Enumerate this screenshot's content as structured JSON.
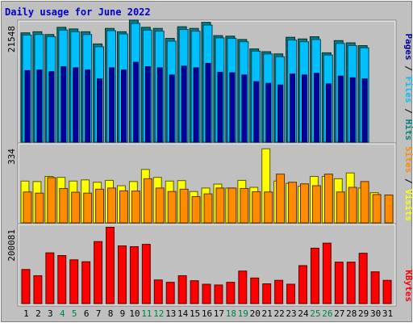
{
  "colors": {
    "background": "#C0C0C0",
    "panel": "#C0C0C0",
    "border_dark": "#808080",
    "border_light": "#FFFFFF",
    "title": "#0000CC",
    "hits": "#008080",
    "files": "#00BFFF",
    "pages": "#0000A0",
    "visits": "#FFFF00",
    "sites": "#FF8C00",
    "kbytes": "#FF0000",
    "weekend_day": "#008040",
    "weekday": "#000000"
  },
  "chart_data": {
    "type": "bar",
    "title": "Daily usage for June 2022",
    "categories": [
      "1",
      "2",
      "3",
      "4",
      "5",
      "6",
      "7",
      "8",
      "9",
      "10",
      "11",
      "12",
      "13",
      "14",
      "15",
      "16",
      "17",
      "18",
      "19",
      "20",
      "21",
      "22",
      "23",
      "24",
      "25",
      "26",
      "27",
      "28",
      "29",
      "30",
      "31"
    ],
    "weekend_days": [
      "4",
      "5",
      "11",
      "12",
      "18",
      "19",
      "25",
      "26"
    ],
    "panels": [
      {
        "id": "hits-files-pages",
        "scale_label": "21548",
        "ymax": 21548,
        "legend": [
          {
            "label": "Hits",
            "color": "#008080"
          },
          {
            "label": "Files",
            "color": "#00BFFF"
          },
          {
            "label": "Pages",
            "color": "#0000A0"
          }
        ],
        "series": [
          {
            "name": "Hits",
            "values": [
              19700,
              19900,
              19400,
              20700,
              20400,
              19900,
              17700,
              20500,
              19900,
              22000,
              20700,
              20500,
              18700,
              20800,
              20500,
              21600,
              19200,
              19100,
              18500,
              16800,
              16300,
              15900,
              18900,
              18600,
              19000,
              16100,
              18300,
              17900,
              17400,
              0,
              0
            ]
          },
          {
            "name": "Files",
            "values": [
              19300,
              19400,
              19000,
              20200,
              19900,
              19400,
              17200,
              20100,
              19500,
              21400,
              20200,
              20000,
              18200,
              20300,
              20000,
              21100,
              18800,
              18700,
              18100,
              16400,
              15900,
              15400,
              18400,
              18100,
              18500,
              15700,
              17800,
              17400,
              17000,
              0,
              0
            ]
          },
          {
            "name": "Pages",
            "values": [
              12900,
              13000,
              12700,
              13600,
              13400,
              13000,
              11400,
              13400,
              13000,
              14400,
              13600,
              13400,
              12100,
              13700,
              13400,
              14200,
              12600,
              12500,
              12100,
              10900,
              10600,
              10300,
              12300,
              12100,
              12400,
              10500,
              11900,
              11600,
              11400,
              0,
              0
            ]
          }
        ]
      },
      {
        "id": "visits-sites",
        "scale_label": "334",
        "ymax": 334,
        "legend": [
          {
            "label": "Visits",
            "color": "#FFFF00"
          },
          {
            "label": "Sites",
            "color": "#FF8C00"
          }
        ],
        "series": [
          {
            "name": "Visits",
            "values": [
              180,
              178,
              200,
              196,
              180,
              185,
              175,
              183,
              160,
              178,
              230,
              196,
              180,
              182,
              135,
              150,
              167,
              150,
              183,
              153,
              319,
              180,
              170,
              158,
              200,
              200,
              190,
              215,
              150,
              130,
              0
            ]
          },
          {
            "name": "Sites",
            "values": [
              133,
              128,
              195,
              148,
              132,
              128,
              145,
              150,
              138,
              137,
              190,
              150,
              135,
              145,
              113,
              125,
              150,
              150,
              148,
              134,
              133,
              210,
              175,
              168,
              160,
              210,
              133,
              153,
              178,
              122,
              120
            ]
          }
        ]
      },
      {
        "id": "kbytes",
        "scale_label": "200081",
        "ymax": 200081,
        "legend": [
          {
            "label": "KBytes",
            "color": "#FF0000"
          }
        ],
        "series": [
          {
            "name": "KBytes",
            "values": [
              88000,
              72000,
              131000,
              124000,
              113000,
              108000,
              160000,
              197000,
              149000,
              147000,
              153000,
              61000,
              55000,
              72000,
              59000,
              50000,
              48000,
              55000,
              84000,
              66000,
              51000,
              60000,
              50000,
              98000,
              143000,
              156000,
              107000,
              107000,
              130000,
              82000,
              60000
            ]
          }
        ]
      }
    ]
  }
}
